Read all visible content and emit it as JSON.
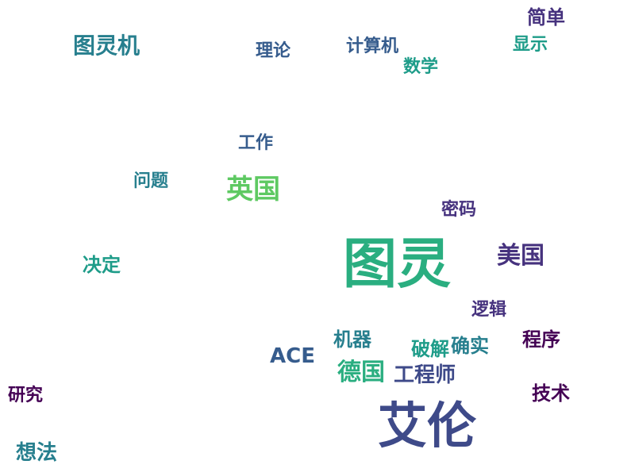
{
  "image": {
    "type": "word-cloud",
    "language": "zh"
  },
  "words": {
    "tuling": "图灵",
    "ailun": "艾伦",
    "tulingji": "图灵机",
    "jueding": "决定",
    "meiguo": "美国",
    "yingguo": "英国",
    "deguo": "德国",
    "gongchengshi": "工程师",
    "ace": "ACE",
    "jiqi": "机器",
    "jisuanji": "计算机",
    "pojie": "破解",
    "mima": "密码",
    "shuxue": "数学",
    "jiandan": "简单",
    "jishu": "技术",
    "xiangfa": "想法",
    "wenti": "问题",
    "yanjiu": "研究",
    "chengxu": "程序",
    "queshi": "确实",
    "lilun": "理论",
    "gongzuo": "工作",
    "xianshi": "显示",
    "luoji": "逻辑"
  },
  "palette": {
    "green_dark": "#1e9c89",
    "green": "#2aae80",
    "teal": "#277f8e",
    "blue": "#365c8d",
    "navy": "#3e4a89",
    "purple": "#46327e",
    "violet": "#440154",
    "lime": "#5ec962",
    "yellow_green": "#addc30",
    "yellow": "#fde725"
  }
}
